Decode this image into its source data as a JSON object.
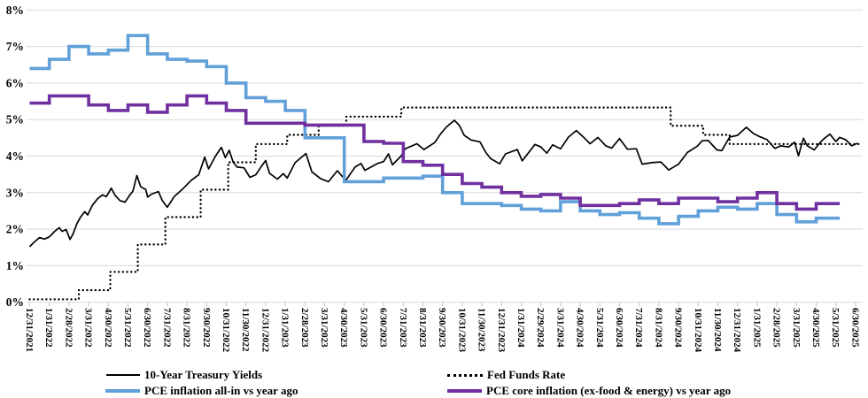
{
  "chart_data": {
    "type": "line",
    "title": "",
    "grid": true,
    "legend_position": "bottom",
    "colors": {
      "treasury": "#000000",
      "fed_funds": "#000000",
      "pce_all": "#61A0D9",
      "pce_core": "#7030A0",
      "gridline": "#d9d9d9",
      "tick": "#bfbfbf",
      "background": "#ffffff"
    },
    "y_axis": {
      "min": 0,
      "max": 8,
      "unit": "%",
      "tick_labels": [
        "0%",
        "1%",
        "2%",
        "3%",
        "4%",
        "5%",
        "6%",
        "7%",
        "8%"
      ]
    },
    "x_axis": {
      "labels": [
        "12/31/2021",
        "1/31/2022",
        "2/28/2022",
        "3/31/2022",
        "4/30/2022",
        "5/31/2022",
        "6/30/2022",
        "7/31/2022",
        "8/31/2022",
        "9/30/2022",
        "10/31/2022",
        "11/30/2022",
        "12/31/2022",
        "1/31/2023",
        "2/28/2023",
        "3/31/2023",
        "4/30/2023",
        "5/31/2023",
        "6/30/2023",
        "7/31/2023",
        "8/31/2023",
        "9/30/2023",
        "10/31/2023",
        "11/30/2023",
        "12/31/2023",
        "1/31/2024",
        "2/29/2024",
        "3/31/2024",
        "4/30/2024",
        "5/31/2024",
        "6/30/2024",
        "7/31/2024",
        "8/31/2024",
        "9/30/2024",
        "10/31/2024",
        "11/30/2024",
        "12/31/2024",
        "1/31/2025",
        "2/28/2025",
        "3/31/2025",
        "4/30/2025",
        "5/31/2025",
        "6/30/2025"
      ]
    },
    "series": [
      {
        "name": "10-Year Treasury Yields",
        "color": "#000000",
        "style": "solid",
        "points": [
          [
            0,
            1.52
          ],
          [
            0.2,
            1.63
          ],
          [
            0.5,
            1.77
          ],
          [
            0.75,
            1.73
          ],
          [
            1.0,
            1.79
          ],
          [
            1.25,
            1.93
          ],
          [
            1.5,
            2.04
          ],
          [
            1.65,
            1.94
          ],
          [
            1.85,
            1.99
          ],
          [
            1.95,
            1.86
          ],
          [
            2.05,
            1.72
          ],
          [
            2.2,
            1.86
          ],
          [
            2.4,
            2.15
          ],
          [
            2.6,
            2.34
          ],
          [
            2.8,
            2.48
          ],
          [
            2.95,
            2.39
          ],
          [
            3.2,
            2.66
          ],
          [
            3.45,
            2.83
          ],
          [
            3.7,
            2.94
          ],
          [
            3.9,
            2.89
          ],
          [
            4.15,
            3.12
          ],
          [
            4.35,
            2.92
          ],
          [
            4.6,
            2.78
          ],
          [
            4.85,
            2.74
          ],
          [
            5.1,
            2.94
          ],
          [
            5.25,
            3.04
          ],
          [
            5.45,
            3.47
          ],
          [
            5.65,
            3.16
          ],
          [
            5.9,
            3.09
          ],
          [
            6.0,
            2.88
          ],
          [
            6.2,
            2.96
          ],
          [
            6.55,
            3.03
          ],
          [
            6.75,
            2.78
          ],
          [
            7.0,
            2.6
          ],
          [
            7.35,
            2.89
          ],
          [
            7.8,
            3.11
          ],
          [
            8.2,
            3.33
          ],
          [
            8.6,
            3.49
          ],
          [
            8.9,
            3.97
          ],
          [
            9.1,
            3.65
          ],
          [
            9.45,
            4.0
          ],
          [
            9.75,
            4.24
          ],
          [
            9.95,
            3.96
          ],
          [
            10.15,
            4.16
          ],
          [
            10.35,
            3.83
          ],
          [
            10.55,
            3.7
          ],
          [
            10.9,
            3.68
          ],
          [
            11.2,
            3.42
          ],
          [
            11.5,
            3.49
          ],
          [
            11.75,
            3.69
          ],
          [
            12.0,
            3.88
          ],
          [
            12.2,
            3.53
          ],
          [
            12.6,
            3.37
          ],
          [
            12.9,
            3.52
          ],
          [
            13.1,
            3.4
          ],
          [
            13.5,
            3.82
          ],
          [
            14.05,
            4.07
          ],
          [
            14.35,
            3.57
          ],
          [
            14.8,
            3.38
          ],
          [
            15.2,
            3.3
          ],
          [
            15.65,
            3.6
          ],
          [
            15.9,
            3.44
          ],
          [
            16.1,
            3.35
          ],
          [
            16.55,
            3.7
          ],
          [
            16.85,
            3.8
          ],
          [
            17.05,
            3.61
          ],
          [
            17.7,
            3.8
          ],
          [
            18.0,
            3.85
          ],
          [
            18.25,
            4.06
          ],
          [
            18.45,
            3.76
          ],
          [
            18.9,
            4.01
          ],
          [
            19.1,
            4.2
          ],
          [
            19.7,
            4.34
          ],
          [
            20.05,
            4.18
          ],
          [
            20.6,
            4.37
          ],
          [
            20.9,
            4.61
          ],
          [
            21.2,
            4.8
          ],
          [
            21.6,
            4.98
          ],
          [
            21.85,
            4.84
          ],
          [
            22.1,
            4.57
          ],
          [
            22.45,
            4.44
          ],
          [
            22.9,
            4.39
          ],
          [
            23.2,
            4.1
          ],
          [
            23.45,
            3.93
          ],
          [
            23.9,
            3.79
          ],
          [
            24.2,
            4.06
          ],
          [
            24.8,
            4.18
          ],
          [
            25.05,
            3.87
          ],
          [
            25.7,
            4.32
          ],
          [
            26.0,
            4.25
          ],
          [
            26.3,
            4.08
          ],
          [
            26.6,
            4.31
          ],
          [
            27.0,
            4.2
          ],
          [
            27.4,
            4.52
          ],
          [
            27.8,
            4.7
          ],
          [
            28.2,
            4.5
          ],
          [
            28.5,
            4.34
          ],
          [
            28.9,
            4.51
          ],
          [
            29.3,
            4.28
          ],
          [
            29.6,
            4.22
          ],
          [
            30.0,
            4.48
          ],
          [
            30.4,
            4.19
          ],
          [
            30.85,
            4.2
          ],
          [
            31.15,
            3.78
          ],
          [
            31.65,
            3.82
          ],
          [
            32.1,
            3.84
          ],
          [
            32.5,
            3.62
          ],
          [
            33.0,
            3.78
          ],
          [
            33.45,
            4.1
          ],
          [
            33.95,
            4.27
          ],
          [
            34.2,
            4.42
          ],
          [
            34.5,
            4.43
          ],
          [
            34.95,
            4.17
          ],
          [
            35.2,
            4.15
          ],
          [
            35.6,
            4.52
          ],
          [
            36.0,
            4.57
          ],
          [
            36.45,
            4.79
          ],
          [
            36.8,
            4.62
          ],
          [
            37.1,
            4.54
          ],
          [
            37.5,
            4.45
          ],
          [
            37.9,
            4.21
          ],
          [
            38.2,
            4.28
          ],
          [
            38.6,
            4.25
          ],
          [
            38.9,
            4.38
          ],
          [
            39.1,
            4.01
          ],
          [
            39.35,
            4.49
          ],
          [
            39.55,
            4.28
          ],
          [
            39.9,
            4.17
          ],
          [
            40.15,
            4.34
          ],
          [
            40.4,
            4.48
          ],
          [
            40.7,
            4.6
          ],
          [
            41.0,
            4.4
          ],
          [
            41.2,
            4.51
          ],
          [
            41.5,
            4.45
          ],
          [
            41.8,
            4.28
          ],
          [
            42.1,
            4.35
          ]
        ]
      },
      {
        "name": "Fed Funds Rate",
        "color": "#000000",
        "style": "dotted-step",
        "breakpoints": [
          [
            0,
            0.08
          ],
          [
            2.5,
            0.33
          ],
          [
            4.1,
            0.83
          ],
          [
            5.5,
            1.58
          ],
          [
            6.9,
            2.33
          ],
          [
            8.7,
            3.08
          ],
          [
            10.1,
            3.83
          ],
          [
            11.5,
            4.33
          ],
          [
            13.1,
            4.58
          ],
          [
            14.7,
            4.83
          ],
          [
            16.1,
            5.08
          ],
          [
            18.9,
            5.33
          ],
          [
            32.6,
            4.83
          ],
          [
            34.25,
            4.58
          ],
          [
            35.6,
            4.33
          ]
        ],
        "end_month": 42.35
      },
      {
        "name": "PCE inflation all-in vs year ago",
        "color": "#61A0D9",
        "style": "step-monthly",
        "start_month": 0,
        "end_month": 41.2,
        "monthly_values": [
          6.4,
          6.65,
          7.0,
          6.8,
          6.9,
          7.3,
          6.8,
          6.65,
          6.6,
          6.45,
          6.0,
          5.6,
          5.5,
          5.25,
          4.5,
          4.5,
          3.3,
          3.3,
          3.4,
          3.4,
          3.45,
          3.0,
          2.7,
          2.7,
          2.65,
          2.55,
          2.5,
          2.75,
          2.5,
          2.4,
          2.45,
          2.3,
          2.15,
          2.35,
          2.5,
          2.6,
          2.55,
          2.7,
          2.4,
          2.2,
          2.3
        ]
      },
      {
        "name": "PCE core inflation (ex-food & energy) vs year ago",
        "color": "#7030A0",
        "style": "step-monthly",
        "start_month": 0,
        "end_month": 41.2,
        "monthly_values": [
          5.45,
          5.65,
          5.65,
          5.4,
          5.25,
          5.4,
          5.2,
          5.4,
          5.65,
          5.45,
          5.25,
          4.9,
          4.9,
          4.9,
          4.85,
          4.85,
          4.85,
          4.4,
          4.35,
          3.85,
          3.75,
          3.5,
          3.25,
          3.15,
          3.0,
          2.9,
          2.95,
          2.85,
          2.65,
          2.65,
          2.7,
          2.8,
          2.7,
          2.85,
          2.85,
          2.75,
          2.85,
          3.0,
          2.7,
          2.55,
          2.7
        ]
      }
    ]
  }
}
